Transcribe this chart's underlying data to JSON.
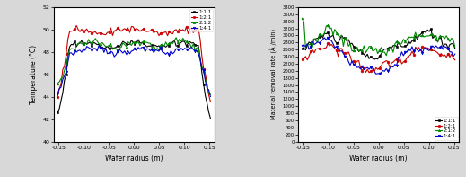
{
  "legend_labels": [
    "1:1:1",
    "1:2:1",
    "2:1:2",
    "1:4:1"
  ],
  "colors": [
    "#000000",
    "#cc0000",
    "#008800",
    "#0000cc"
  ],
  "markers": [
    "s",
    "o",
    "^",
    "v"
  ],
  "xlabel": "Wafer radius (m)",
  "ylabel_left": "Temperature (°C)",
  "ylabel_right": "Material removal rate (Å /min)",
  "xlim": [
    -0.16,
    0.16
  ],
  "ylim_left": [
    40,
    52
  ],
  "ylim_right": [
    0,
    3800
  ],
  "yticks_left": [
    40,
    42,
    44,
    46,
    48,
    50,
    52
  ],
  "xticks": [
    -0.15,
    -0.1,
    -0.05,
    0.0,
    0.05,
    0.1,
    0.15
  ],
  "bg_color": "#d8d8d8",
  "plot_bg_color": "#ffffff",
  "markersize": 2.0,
  "linewidth": 0.8
}
